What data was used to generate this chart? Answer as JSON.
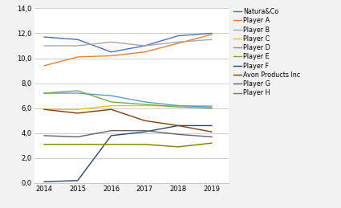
{
  "years": [
    2014,
    2015,
    2016,
    2017,
    2018,
    2019
  ],
  "series": [
    {
      "label": "Natura&Co",
      "color": "#4472c4",
      "values": [
        11.7,
        11.5,
        10.5,
        11.0,
        11.8,
        12.0
      ]
    },
    {
      "label": "Player A",
      "color": "#ed7d31",
      "values": [
        9.4,
        10.1,
        10.2,
        10.5,
        11.2,
        11.9
      ]
    },
    {
      "label": "Player B",
      "color": "#a6a6a6",
      "values": [
        11.0,
        11.0,
        11.3,
        11.0,
        11.3,
        11.5
      ]
    },
    {
      "label": "Player C",
      "color": "#ffc000",
      "values": [
        5.9,
        5.9,
        6.2,
        6.2,
        6.2,
        6.2
      ]
    },
    {
      "label": "Player D",
      "color": "#5b9bd5",
      "values": [
        7.2,
        7.2,
        7.0,
        6.5,
        6.2,
        6.1
      ]
    },
    {
      "label": "Player E",
      "color": "#70ad47",
      "values": [
        7.2,
        7.4,
        6.5,
        6.3,
        6.1,
        6.0
      ]
    },
    {
      "label": "Player F",
      "color": "#264478",
      "values": [
        0.1,
        0.2,
        3.8,
        4.1,
        4.6,
        4.6
      ]
    },
    {
      "label": "Avon Products Inc",
      "color": "#843c0c",
      "values": [
        5.9,
        5.6,
        5.9,
        5.0,
        4.6,
        4.1
      ]
    },
    {
      "label": "Player G",
      "color": "#636363",
      "values": [
        3.8,
        3.7,
        4.2,
        4.2,
        3.9,
        3.7
      ]
    },
    {
      "label": "Player H",
      "color": "#7f7f00",
      "values": [
        3.1,
        3.1,
        3.1,
        3.1,
        2.9,
        3.2
      ]
    }
  ],
  "ylim": [
    0,
    14
  ],
  "yticks": [
    0.0,
    2.0,
    4.0,
    6.0,
    8.0,
    10.0,
    12.0,
    14.0
  ],
  "background_color": "#f2f2f2",
  "plot_area_color": "#ffffff"
}
